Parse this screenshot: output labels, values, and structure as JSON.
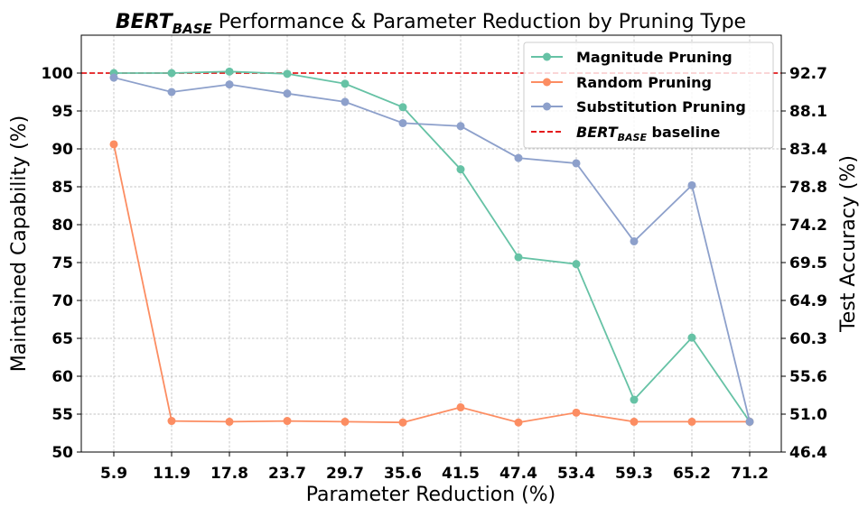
{
  "chart_data": {
    "type": "line",
    "title": {
      "bert_main": "BERT",
      "bert_sub": "BASE",
      "rest": " Performance & Parameter Reduction by Pruning Type"
    },
    "xlabel": "Parameter Reduction (%)",
    "ylabel_left": "Maintained Capability (%)",
    "ylabel_right": "Test Accuracy (%)",
    "categories": [
      "5.9",
      "11.9",
      "17.8",
      "23.7",
      "29.7",
      "35.6",
      "41.5",
      "47.4",
      "53.4",
      "59.3",
      "65.2",
      "71.2"
    ],
    "y_left_ticks": [
      "50",
      "55",
      "60",
      "65",
      "70",
      "75",
      "80",
      "85",
      "90",
      "95",
      "100"
    ],
    "y_right_ticks": [
      "46.4",
      "51.0",
      "55.6",
      "60.3",
      "64.9",
      "69.5",
      "74.2",
      "78.8",
      "83.4",
      "88.1",
      "92.7"
    ],
    "ylim_left": [
      50,
      105
    ],
    "grid": true,
    "legend_position": "top-right",
    "series": [
      {
        "name": "Magnitude Pruning",
        "color": "#66c2a5",
        "values": [
          100.0,
          100.0,
          100.2,
          99.9,
          98.6,
          95.5,
          87.3,
          75.7,
          74.8,
          56.9,
          65.1,
          54.0
        ]
      },
      {
        "name": "Random Pruning",
        "color": "#fc8d62",
        "values": [
          90.6,
          54.1,
          54.0,
          54.1,
          54.0,
          53.9,
          55.9,
          53.9,
          55.2,
          54.0,
          54.0,
          54.0
        ]
      },
      {
        "name": "Substitution Pruning",
        "color": "#8da0cb",
        "values": [
          99.4,
          97.5,
          98.5,
          97.3,
          96.2,
          93.4,
          93.0,
          88.8,
          88.1,
          77.8,
          85.2,
          54.0
        ]
      }
    ],
    "baseline": {
      "value": 100,
      "color": "#e41a1c",
      "label_main": "BERT",
      "label_sub": "BASE",
      "label_rest": " baseline"
    }
  }
}
